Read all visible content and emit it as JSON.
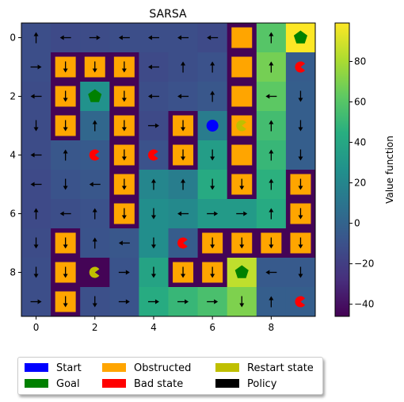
{
  "chart_data": {
    "type": "heatmap",
    "title": "SARSA",
    "xlabel": "",
    "ylabel": "",
    "xlim": [
      -0.5,
      9.5
    ],
    "ylim": [
      9.5,
      -0.5
    ],
    "xticks": [
      0,
      2,
      4,
      6,
      8
    ],
    "yticks": [
      0,
      2,
      4,
      6,
      8
    ],
    "colorbar": {
      "label": "Value function",
      "range": [
        -46,
        99
      ],
      "ticks": [
        -40,
        -20,
        0,
        20,
        40,
        60,
        80
      ],
      "colormap": "viridis"
    },
    "values": [
      [
        -12,
        -14,
        -13,
        -12,
        -12,
        -12,
        -14,
        -45,
        60,
        99
      ],
      [
        -12,
        -45,
        -45,
        -45,
        -14,
        -12,
        -10,
        -45,
        68,
        -4
      ],
      [
        -13,
        -45,
        27,
        -45,
        -12,
        -10,
        -7,
        -45,
        62,
        -3
      ],
      [
        -13,
        -45,
        2,
        -45,
        -14,
        -45,
        14,
        -45,
        54,
        -3
      ],
      [
        -13,
        -7,
        -5,
        -45,
        -10,
        -45,
        34,
        -45,
        50,
        -3
      ],
      [
        -14,
        -9,
        -7,
        -45,
        20,
        15,
        42,
        -45,
        46,
        -45
      ],
      [
        -14,
        -12,
        -10,
        -45,
        25,
        22,
        32,
        32,
        42,
        -45
      ],
      [
        -13,
        -45,
        -9,
        -7,
        25,
        -4,
        -45,
        -45,
        -45,
        -45
      ],
      [
        -12,
        -45,
        -45,
        -9,
        38,
        -45,
        -45,
        85,
        -5,
        -5
      ],
      [
        -12,
        -45,
        -11,
        -9,
        43,
        50,
        56,
        70,
        -3,
        -3
      ]
    ],
    "obstructed": [
      [
        0,
        7
      ],
      [
        1,
        1
      ],
      [
        1,
        2
      ],
      [
        1,
        3
      ],
      [
        1,
        7
      ],
      [
        2,
        1
      ],
      [
        2,
        3
      ],
      [
        2,
        7
      ],
      [
        3,
        1
      ],
      [
        3,
        3
      ],
      [
        3,
        5
      ],
      [
        3,
        7
      ],
      [
        4,
        3
      ],
      [
        4,
        5
      ],
      [
        4,
        7
      ],
      [
        5,
        3
      ],
      [
        5,
        7
      ],
      [
        5,
        9
      ],
      [
        6,
        3
      ],
      [
        6,
        9
      ],
      [
        7,
        1
      ],
      [
        7,
        6
      ],
      [
        7,
        7
      ],
      [
        7,
        8
      ],
      [
        7,
        9
      ],
      [
        8,
        1
      ],
      [
        8,
        5
      ],
      [
        8,
        6
      ],
      [
        9,
        1
      ]
    ],
    "start": [
      [
        3,
        6
      ]
    ],
    "goal": [
      [
        0,
        9
      ],
      [
        2,
        2
      ],
      [
        8,
        7
      ]
    ],
    "bad": [
      [
        1,
        9
      ],
      [
        4,
        2
      ],
      [
        4,
        4
      ],
      [
        7,
        5
      ],
      [
        9,
        9
      ]
    ],
    "restart": [
      [
        3,
        7
      ],
      [
        8,
        2
      ]
    ],
    "policy": [
      [
        "up",
        "left",
        "right",
        "left",
        "left",
        "left",
        "left",
        null,
        "up",
        null
      ],
      [
        "right",
        "down",
        "down",
        "down",
        "left",
        "up",
        "up",
        null,
        "up",
        null
      ],
      [
        "left",
        "down",
        null,
        "down",
        "left",
        "left",
        "up",
        null,
        "left",
        "down"
      ],
      [
        "down",
        "down",
        "up",
        "down",
        "right",
        "down",
        null,
        null,
        "up",
        "down"
      ],
      [
        "left",
        "up",
        null,
        "down",
        null,
        "down",
        "down",
        null,
        "up",
        "down"
      ],
      [
        "left",
        "down",
        "left",
        "down",
        "up",
        "up",
        "down",
        "down",
        "up",
        "down"
      ],
      [
        "up",
        "left",
        "up",
        "down",
        "down",
        "left",
        "right",
        "right",
        "up",
        "down"
      ],
      [
        "down",
        "down",
        "up",
        "left",
        "down",
        null,
        "down",
        "down",
        "down",
        "down"
      ],
      [
        "down",
        "down",
        null,
        "right",
        "down",
        "down",
        "down",
        null,
        "left",
        "down"
      ],
      [
        "right",
        "down",
        "down",
        "right",
        "right",
        "right",
        "right",
        "down",
        "up",
        null
      ]
    ],
    "colors": {
      "start": "#0000ff",
      "goal": "#008000",
      "obstructed": "#ffa500",
      "bad": "#ff0000",
      "restart": "#bfbf00",
      "policy": "#000000"
    }
  },
  "legend": {
    "items": [
      {
        "label": "Start",
        "color": "#0000ff"
      },
      {
        "label": "Goal",
        "color": "#008000"
      },
      {
        "label": "Obstructed",
        "color": "#ffa500"
      },
      {
        "label": "Bad state",
        "color": "#ff0000"
      },
      {
        "label": "Restart state",
        "color": "#bfbf00"
      },
      {
        "label": "Policy",
        "color": "#000000"
      }
    ]
  }
}
